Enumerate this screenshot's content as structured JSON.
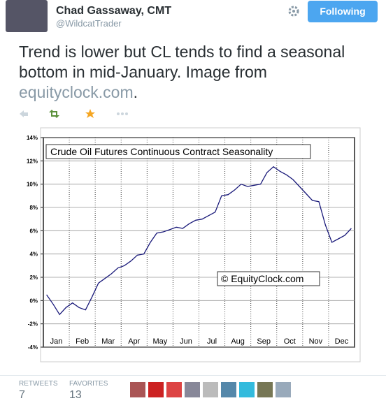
{
  "header": {
    "name": "Chad Gassaway, CMT",
    "handle": "@WildcatTrader",
    "follow_button": "Following"
  },
  "tweet": {
    "text_before": "Trend is lower but CL tends to find a seasonal bottom in mid-January.  Image from ",
    "link": "equityclock.com",
    "text_after": "."
  },
  "chart_data": {
    "type": "line",
    "title": "Crude Oil Futures Continuous Contract Seasonality",
    "annotation": "© EquityClock.com",
    "categories": [
      "Jan",
      null,
      null,
      null,
      "Feb",
      null,
      null,
      null,
      "Mar",
      null,
      null,
      null,
      "Apr",
      null,
      null,
      null,
      "May",
      null,
      null,
      null,
      "Jun",
      null,
      null,
      null,
      "Jul",
      null,
      null,
      null,
      "Aug",
      null,
      null,
      null,
      "Sep",
      null,
      null,
      null,
      "Oct",
      null,
      null,
      null,
      "Nov",
      null,
      null,
      null,
      "Dec",
      null,
      null,
      null
    ],
    "series": [
      {
        "color": "#1a1a7a",
        "values": [
          0.5,
          -0.3,
          -1.2,
          -0.6,
          -0.2,
          -0.6,
          -0.8,
          0.3,
          1.5,
          1.9,
          2.3,
          2.8,
          3.0,
          3.4,
          3.9,
          4.0,
          5.0,
          5.8,
          5.9,
          6.1,
          6.3,
          6.2,
          6.6,
          6.9,
          7.0,
          7.3,
          7.6,
          9.0,
          9.1,
          9.5,
          10.0,
          9.8,
          9.9,
          10.0,
          11.0,
          11.5,
          11.1,
          10.8,
          10.4,
          9.8,
          9.2,
          8.6,
          8.5,
          6.5,
          5.0,
          5.3,
          5.6,
          6.2
        ]
      }
    ],
    "ylim": [
      -4,
      14
    ],
    "yticks": [
      {
        "value": -4,
        "label": "-4%"
      },
      {
        "value": -2,
        "label": "-2%"
      },
      {
        "value": 0,
        "label": "0%"
      },
      {
        "value": 2,
        "label": "2%"
      },
      {
        "value": 4,
        "label": "4%"
      },
      {
        "value": 6,
        "label": "6%"
      },
      {
        "value": 8,
        "label": "8%"
      },
      {
        "value": 10,
        "label": "10%"
      },
      {
        "value": 12,
        "label": "12%"
      },
      {
        "value": 14,
        "label": "14%"
      }
    ],
    "grid": true
  },
  "footer": {
    "retweets_label": "RETWEETS",
    "retweets": 7,
    "favorites_label": "FAVORITES",
    "favorites": 13
  }
}
